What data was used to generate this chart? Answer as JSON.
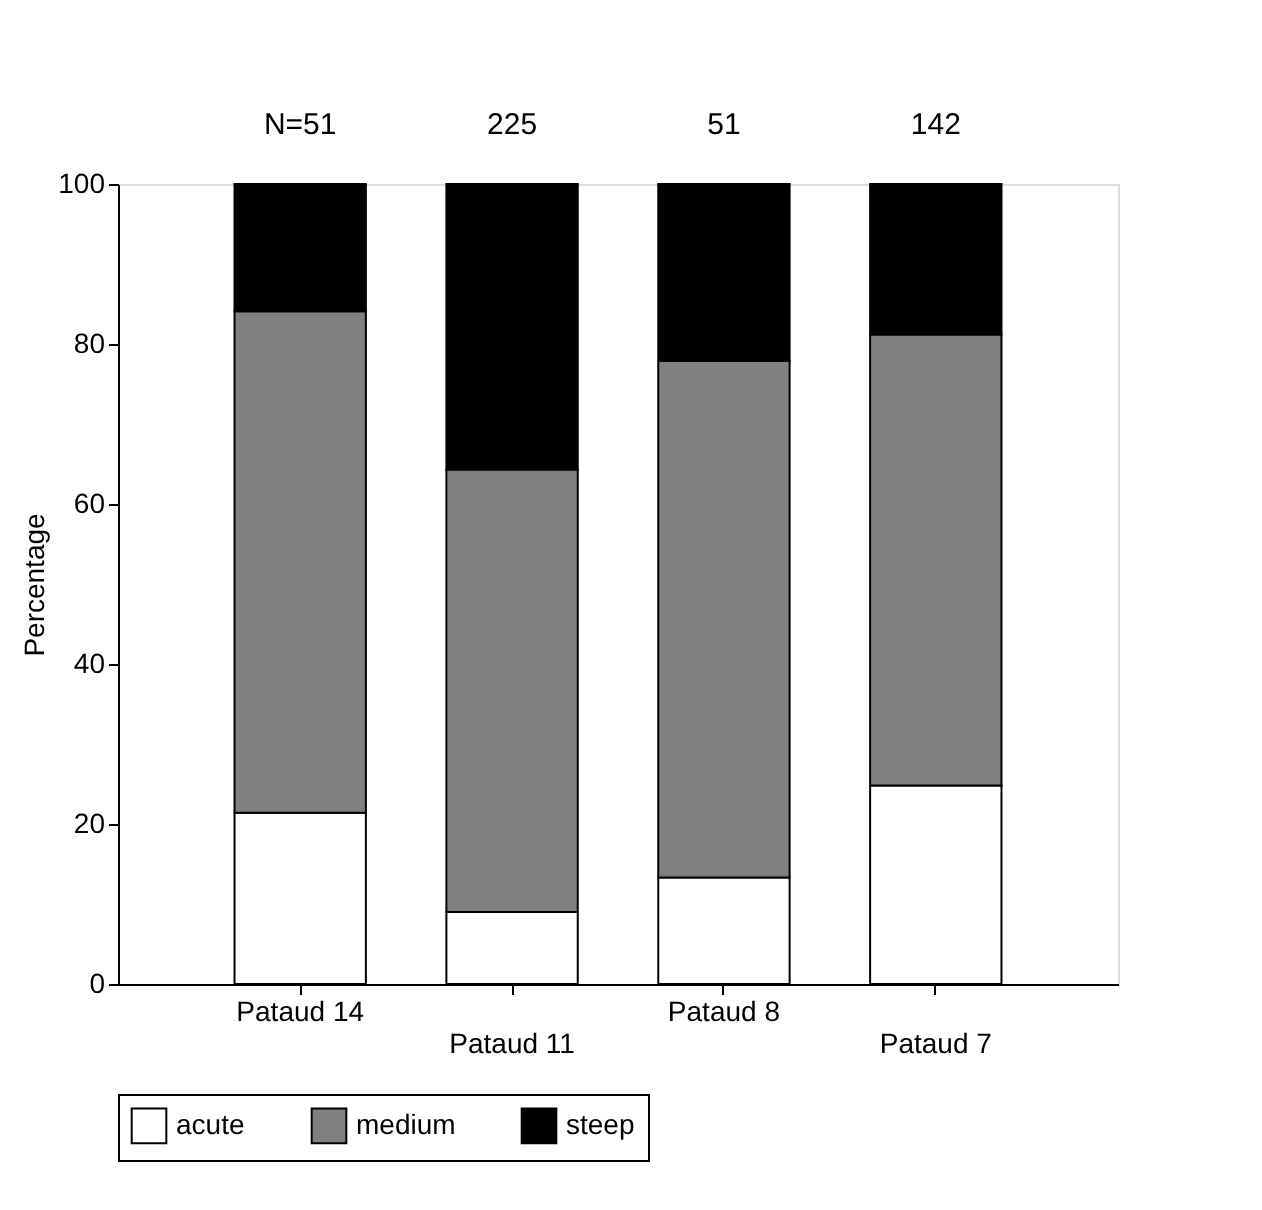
{
  "chart_data": {
    "type": "bar",
    "stacked": true,
    "ylabel": "Percentage",
    "categories": [
      "Pataud 14",
      "Pataud 11",
      "Pataud 8",
      "Pataud 7"
    ],
    "series": [
      {
        "name": "acute",
        "color": "#ffffff",
        "values": [
          21.4,
          9.0,
          13.3,
          24.8
        ]
      },
      {
        "name": "medium",
        "color": "#808080",
        "values": [
          62.7,
          55.3,
          64.6,
          56.4
        ]
      },
      {
        "name": "steep",
        "color": "#000000",
        "values": [
          15.9,
          35.7,
          22.1,
          18.8
        ]
      }
    ],
    "ylim": [
      0,
      100
    ],
    "yticks": [
      0,
      20,
      40,
      60,
      80,
      100
    ],
    "annotations": [
      "N=51",
      "225",
      "51",
      "142"
    ],
    "legend": "bottom",
    "grid": false
  }
}
